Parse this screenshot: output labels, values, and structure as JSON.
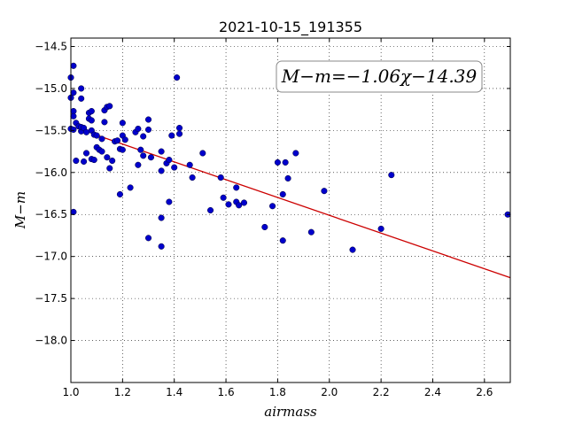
{
  "chart_data": {
    "type": "scatter",
    "title": "2021-10-15_191355",
    "xlabel": "airmass",
    "ylabel": "M−m",
    "xlim": [
      1.0,
      2.7
    ],
    "ylim": [
      -18.5,
      -14.4
    ],
    "y_inverted": true,
    "grid": true,
    "x_ticks": [
      1.0,
      1.2,
      1.4,
      1.6,
      1.8,
      2.0,
      2.2,
      2.4,
      2.6
    ],
    "x_tick_labels": [
      "1.0",
      "1.2",
      "1.4",
      "1.6",
      "1.8",
      "2.0",
      "2.2",
      "2.4",
      "2.6"
    ],
    "y_ticks": [
      -14.5,
      -15.0,
      -15.5,
      -16.0,
      -16.5,
      -17.0,
      -17.5,
      -18.0
    ],
    "y_tick_labels": [
      "−14.5",
      "−15.0",
      "−15.5",
      "−16.0",
      "−16.5",
      "−17.0",
      "−17.5",
      "−18.0"
    ],
    "annotation": "M−m=−1.06χ−14.39",
    "fit": {
      "slope": -1.06,
      "intercept": -14.39,
      "x_range": [
        1.08,
        2.7
      ],
      "color": "#cc0000"
    },
    "marker_color": "#0000cc",
    "points": [
      [
        1.0,
        -14.87
      ],
      [
        1.01,
        -14.73
      ],
      [
        1.01,
        -15.05
      ],
      [
        1.0,
        -15.11
      ],
      [
        1.01,
        -15.27
      ],
      [
        1.01,
        -15.33
      ],
      [
        1.02,
        -15.41
      ],
      [
        1.0,
        -15.48
      ],
      [
        1.03,
        -15.45
      ],
      [
        1.01,
        -15.49
      ],
      [
        1.04,
        -15.51
      ],
      [
        1.04,
        -15.46
      ],
      [
        1.04,
        -15.0
      ],
      [
        1.04,
        -15.12
      ],
      [
        1.05,
        -15.47
      ],
      [
        1.06,
        -15.52
      ],
      [
        1.07,
        -15.36
      ],
      [
        1.07,
        -15.29
      ],
      [
        1.08,
        -15.27
      ],
      [
        1.08,
        -15.5
      ],
      [
        1.09,
        -15.55
      ],
      [
        1.08,
        -15.38
      ],
      [
        1.1,
        -15.56
      ],
      [
        1.01,
        -16.47
      ],
      [
        1.02,
        -15.86
      ],
      [
        1.05,
        -15.87
      ],
      [
        1.06,
        -15.77
      ],
      [
        1.08,
        -15.84
      ],
      [
        1.09,
        -15.85
      ],
      [
        1.1,
        -15.7
      ],
      [
        1.11,
        -15.73
      ],
      [
        1.12,
        -15.6
      ],
      [
        1.13,
        -15.26
      ],
      [
        1.13,
        -15.4
      ],
      [
        1.14,
        -15.22
      ],
      [
        1.15,
        -15.21
      ],
      [
        1.12,
        -15.75
      ],
      [
        1.14,
        -15.82
      ],
      [
        1.15,
        -15.95
      ],
      [
        1.16,
        -15.86
      ],
      [
        1.17,
        -15.63
      ],
      [
        1.18,
        -15.62
      ],
      [
        1.19,
        -15.72
      ],
      [
        1.2,
        -15.73
      ],
      [
        1.2,
        -15.56
      ],
      [
        1.2,
        -15.41
      ],
      [
        1.21,
        -15.61
      ],
      [
        1.19,
        -16.26
      ],
      [
        1.23,
        -16.18
      ],
      [
        1.25,
        -15.52
      ],
      [
        1.26,
        -15.48
      ],
      [
        1.26,
        -15.91
      ],
      [
        1.27,
        -15.73
      ],
      [
        1.28,
        -15.57
      ],
      [
        1.28,
        -15.8
      ],
      [
        1.3,
        -15.37
      ],
      [
        1.3,
        -15.49
      ],
      [
        1.31,
        -15.82
      ],
      [
        1.3,
        -16.78
      ],
      [
        1.35,
        -15.98
      ],
      [
        1.35,
        -15.75
      ],
      [
        1.35,
        -16.54
      ],
      [
        1.35,
        -16.88
      ],
      [
        1.37,
        -15.89
      ],
      [
        1.38,
        -15.85
      ],
      [
        1.38,
        -16.35
      ],
      [
        1.39,
        -15.56
      ],
      [
        1.4,
        -15.94
      ],
      [
        1.41,
        -14.87
      ],
      [
        1.42,
        -15.47
      ],
      [
        1.42,
        -15.54
      ],
      [
        1.46,
        -15.91
      ],
      [
        1.47,
        -16.06
      ],
      [
        1.51,
        -15.77
      ],
      [
        1.54,
        -16.45
      ],
      [
        1.58,
        -16.06
      ],
      [
        1.59,
        -16.3
      ],
      [
        1.61,
        -16.38
      ],
      [
        1.64,
        -16.18
      ],
      [
        1.64,
        -16.35
      ],
      [
        1.65,
        -16.39
      ],
      [
        1.67,
        -16.36
      ],
      [
        1.75,
        -16.65
      ],
      [
        1.78,
        -16.4
      ],
      [
        1.8,
        -15.88
      ],
      [
        1.82,
        -16.26
      ],
      [
        1.82,
        -16.81
      ],
      [
        1.83,
        -15.88
      ],
      [
        1.84,
        -16.07
      ],
      [
        1.87,
        -15.77
      ],
      [
        1.93,
        -16.71
      ],
      [
        1.98,
        -16.22
      ],
      [
        2.09,
        -16.92
      ],
      [
        2.2,
        -16.67
      ],
      [
        2.24,
        -16.03
      ],
      [
        2.69,
        -16.5
      ]
    ]
  }
}
